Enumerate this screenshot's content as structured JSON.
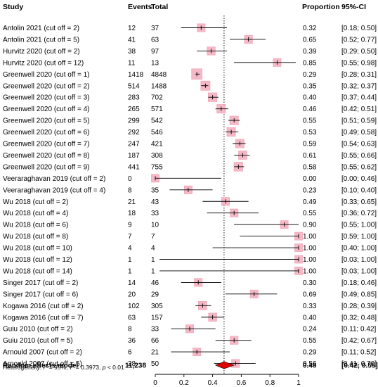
{
  "headers": {
    "study": "Study",
    "events": "Events",
    "total": "Total",
    "proportion": "Proportion",
    "ci": "95%-CI"
  },
  "chart_data": {
    "type": "forest",
    "xlim": [
      0,
      1
    ],
    "x_ticks": [
      "0",
      "0.2",
      "0.4",
      "0.6",
      "0.8",
      "1"
    ],
    "reference_line": 0.48,
    "studies": [
      {
        "label": "Antolin 2021 (cut off = 2)",
        "events": "12",
        "total": "37",
        "prop": 0.32,
        "lower": 0.18,
        "upper": 0.5,
        "prop_text": "0.32",
        "ci_text": "[0.18; 0.50]"
      },
      {
        "label": "Antolin 2021 (cut off = 5)",
        "events": "41",
        "total": "63",
        "prop": 0.65,
        "lower": 0.52,
        "upper": 0.77,
        "prop_text": "0.65",
        "ci_text": "[0.52; 0.77]"
      },
      {
        "label": "Hurvitz 2020 (cut off = 2)",
        "events": "38",
        "total": "97",
        "prop": 0.39,
        "lower": 0.29,
        "upper": 0.5,
        "prop_text": "0.39",
        "ci_text": "[0.29; 0.50]"
      },
      {
        "label": "Hurvitz 2020 (cut off = 12)",
        "events": "11",
        "total": "13",
        "prop": 0.85,
        "lower": 0.55,
        "upper": 0.98,
        "prop_text": "0.85",
        "ci_text": "[0.55; 0.98]"
      },
      {
        "label": "Greenwell 2020 (cut off = 1)",
        "events": "1418",
        "total": "4848",
        "prop": 0.29,
        "lower": 0.28,
        "upper": 0.31,
        "prop_text": "0.29",
        "ci_text": "[0.28; 0.31]"
      },
      {
        "label": "Greenwell 2020 (cut off = 2)",
        "events": "514",
        "total": "1488",
        "prop": 0.35,
        "lower": 0.32,
        "upper": 0.37,
        "prop_text": "0.35",
        "ci_text": "[0.32; 0.37]"
      },
      {
        "label": "Greenwell 2020 (cut off = 3)",
        "events": "283",
        "total": "702",
        "prop": 0.4,
        "lower": 0.37,
        "upper": 0.44,
        "prop_text": "0.40",
        "ci_text": "[0.37; 0.44]"
      },
      {
        "label": "Greenwell 2020 (cut off = 4)",
        "events": "265",
        "total": "571",
        "prop": 0.46,
        "lower": 0.42,
        "upper": 0.51,
        "prop_text": "0.46",
        "ci_text": "[0.42; 0.51]"
      },
      {
        "label": "Greenwell 2020 (cut off = 5)",
        "events": "299",
        "total": "542",
        "prop": 0.55,
        "lower": 0.51,
        "upper": 0.59,
        "prop_text": "0.55",
        "ci_text": "[0.51; 0.59]"
      },
      {
        "label": "Greenwell 2020 (cut off = 6)",
        "events": "292",
        "total": "546",
        "prop": 0.53,
        "lower": 0.49,
        "upper": 0.58,
        "prop_text": "0.53",
        "ci_text": "[0.49; 0.58]"
      },
      {
        "label": "Greenwell 2020 (cut off = 7)",
        "events": "247",
        "total": "421",
        "prop": 0.59,
        "lower": 0.54,
        "upper": 0.63,
        "prop_text": "0.59",
        "ci_text": "[0.54; 0.63]"
      },
      {
        "label": "Greenwell 2020 (cut off = 8)",
        "events": "187",
        "total": "308",
        "prop": 0.61,
        "lower": 0.55,
        "upper": 0.66,
        "prop_text": "0.61",
        "ci_text": "[0.55; 0.66]"
      },
      {
        "label": "Greenwell 2020 (cut off = 9)",
        "events": "441",
        "total": "755",
        "prop": 0.58,
        "lower": 0.55,
        "upper": 0.62,
        "prop_text": "0.58",
        "ci_text": "[0.55; 0.62]"
      },
      {
        "label": "Veeraraghavan 2019 (cut off = 2)",
        "events": "0",
        "total": "6",
        "prop": 0.0,
        "lower": 0.0,
        "upper": 0.46,
        "prop_text": "0.00",
        "ci_text": "[0.00; 0.46]"
      },
      {
        "label": "Veeraraghavan 2019 (cut off = 4)",
        "events": "8",
        "total": "35",
        "prop": 0.23,
        "lower": 0.1,
        "upper": 0.4,
        "prop_text": "0.23",
        "ci_text": "[0.10; 0.40]"
      },
      {
        "label": "Wu 2018 (cut off = 2)",
        "events": "21",
        "total": "43",
        "prop": 0.49,
        "lower": 0.33,
        "upper": 0.65,
        "prop_text": "0.49",
        "ci_text": "[0.33; 0.65]"
      },
      {
        "label": "Wu 2018 (cut off = 4)",
        "events": "18",
        "total": "33",
        "prop": 0.55,
        "lower": 0.36,
        "upper": 0.72,
        "prop_text": "0.55",
        "ci_text": "[0.36; 0.72]"
      },
      {
        "label": "Wu 2018 (cut off = 6)",
        "events": "9",
        "total": "10",
        "prop": 0.9,
        "lower": 0.55,
        "upper": 1.0,
        "prop_text": "0.90",
        "ci_text": "[0.55; 1.00]"
      },
      {
        "label": "Wu 2018 (cut off = 8)",
        "events": "7",
        "total": "7",
        "prop": 1.0,
        "lower": 0.59,
        "upper": 1.0,
        "prop_text": "1.00",
        "ci_text": "[0.59; 1.00]"
      },
      {
        "label": "Wu 2018 (cut off = 10)",
        "events": "4",
        "total": "4",
        "prop": 1.0,
        "lower": 0.4,
        "upper": 1.0,
        "prop_text": "1.00",
        "ci_text": "[0.40; 1.00]"
      },
      {
        "label": "Wu 2018 (cut off = 12)",
        "events": "1",
        "total": "1",
        "prop": 1.0,
        "lower": 0.03,
        "upper": 1.0,
        "prop_text": "1.00",
        "ci_text": "[0.03; 1.00]"
      },
      {
        "label": "Wu 2018 (cut off = 14)",
        "events": "1",
        "total": "1",
        "prop": 1.0,
        "lower": 0.03,
        "upper": 1.0,
        "prop_text": "1.00",
        "ci_text": "[0.03; 1.00]"
      },
      {
        "label": "Singer 2017 (cut off = 2)",
        "events": "14",
        "total": "46",
        "prop": 0.3,
        "lower": 0.18,
        "upper": 0.46,
        "prop_text": "0.30",
        "ci_text": "[0.18; 0.46]"
      },
      {
        "label": "Singer 2017 (cut off = 6)",
        "events": "20",
        "total": "29",
        "prop": 0.69,
        "lower": 0.49,
        "upper": 0.85,
        "prop_text": "0.69",
        "ci_text": "[0.49; 0.85]"
      },
      {
        "label": "Kogawa 2016 (cut off = 2)",
        "events": "102",
        "total": "305",
        "prop": 0.33,
        "lower": 0.28,
        "upper": 0.39,
        "prop_text": "0.33",
        "ci_text": "[0.28; 0.39]"
      },
      {
        "label": "Kogawa 2016 (cut off = 7)",
        "events": "63",
        "total": "157",
        "prop": 0.4,
        "lower": 0.32,
        "upper": 0.48,
        "prop_text": "0.40",
        "ci_text": "[0.32; 0.48]"
      },
      {
        "label": "Guiu 2010 (cut off = 2)",
        "events": "8",
        "total": "33",
        "prop": 0.24,
        "lower": 0.11,
        "upper": 0.42,
        "prop_text": "0.24",
        "ci_text": "[0.11; 0.42]"
      },
      {
        "label": "Guiu 2010 (cut off = 5)",
        "events": "36",
        "total": "66",
        "prop": 0.55,
        "lower": 0.42,
        "upper": 0.67,
        "prop_text": "0.55",
        "ci_text": "[0.42; 0.67]"
      },
      {
        "label": "Arnould 2007 (cut off = 2)",
        "events": "6",
        "total": "21",
        "prop": 0.29,
        "lower": 0.11,
        "upper": 0.52,
        "prop_text": "0.29",
        "ci_text": "[0.11; 0.52]"
      },
      {
        "label": "Arnould 2007 (cut off = 5)",
        "events": "28",
        "total": "50",
        "prop": 0.56,
        "lower": 0.41,
        "upper": 0.7,
        "prop_text": "0.56",
        "ci_text": "[0.41; 0.70]"
      }
    ],
    "summary": {
      "label": "Random effects model",
      "total": "11,238",
      "prop": 0.48,
      "lower": 0.42,
      "upper": 0.55,
      "prop_text": "0.48",
      "ci_text": "[0.42; 0.55]"
    },
    "heterogeneity": {
      "prefix": "Heterogeneity: ",
      "i2_symbol": "I",
      "i2_sup": "2",
      "i2_value": " = 95%, ",
      "tau_symbol": "τ",
      "tau_sup": "2",
      "tau_value": " = 0.3973, ",
      "p_symbol": "p",
      "p_value": " < 0.01"
    },
    "colors": {
      "box": "#f4b8c6",
      "box_stroke": "#f09fb3",
      "diamond": "#e00000",
      "line": "#000000"
    }
  }
}
